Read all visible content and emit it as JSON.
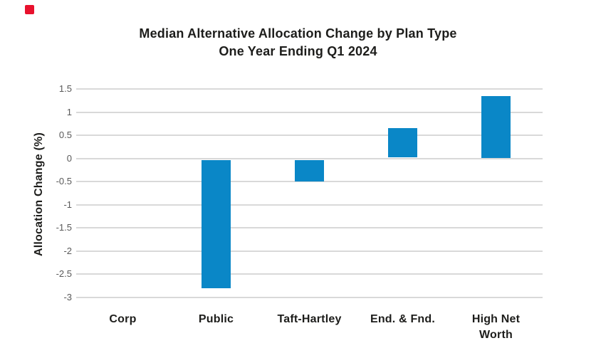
{
  "brand": {
    "mark_color": "#e8112d"
  },
  "chart_data": {
    "type": "bar",
    "title": "Median Alternative Allocation Change by Plan Type",
    "subtitle": "One Year Ending Q1 2024",
    "categories": [
      "Corp",
      "Public",
      "Taft-Hartley",
      "End. & Fnd.",
      "High Net\nWorth"
    ],
    "values": [
      0,
      -2.8,
      -0.5,
      0.66,
      1.35
    ],
    "xlabel": "",
    "ylabel": "Allocation Change (%)",
    "ylim": [
      -3,
      1.5
    ],
    "yticks": [
      1.5,
      1,
      0.5,
      0,
      -0.5,
      -1,
      -1.5,
      -2,
      -2.5,
      -3
    ],
    "ytick_labels": [
      "1.5",
      "1",
      "0.5",
      "0",
      "-0.5",
      "-1",
      "-1.5",
      "-2",
      "-2.5",
      "-3"
    ],
    "grid": true,
    "legend": false,
    "bar_color": "#0a87c7",
    "gridline_color": "#d9d9d9",
    "tick_label_color": "#595959",
    "text_color": "#1d1d1b"
  }
}
